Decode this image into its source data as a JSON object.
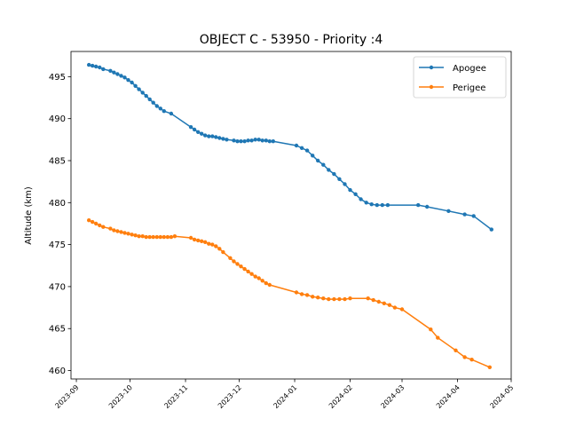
{
  "chart_data": {
    "type": "line",
    "title": "OBJECT C - 53950 - Priority :4",
    "xlabel": "",
    "ylabel": "Altitude (km)",
    "x_range": [
      "2023-08-29",
      "2024-05-01"
    ],
    "ylim": [
      459,
      498
    ],
    "x_ticks": [
      "2023-09",
      "2023-10",
      "2023-11",
      "2023-12",
      "2024-01",
      "2024-02",
      "2024-03",
      "2024-04",
      "2024-05"
    ],
    "y_ticks": [
      460,
      465,
      470,
      475,
      480,
      485,
      490,
      495
    ],
    "grid": false,
    "legend_position": "top-right",
    "series": [
      {
        "name": "Apogee",
        "color": "#1f77b4",
        "points": [
          [
            "2023-09-08",
            496.4
          ],
          [
            "2023-09-10",
            496.3
          ],
          [
            "2023-09-12",
            496.2
          ],
          [
            "2023-09-14",
            496.1
          ],
          [
            "2023-09-16",
            495.9
          ],
          [
            "2023-09-20",
            495.7
          ],
          [
            "2023-09-22",
            495.5
          ],
          [
            "2023-09-24",
            495.3
          ],
          [
            "2023-09-26",
            495.1
          ],
          [
            "2023-09-28",
            494.9
          ],
          [
            "2023-09-30",
            494.6
          ],
          [
            "2023-10-02",
            494.3
          ],
          [
            "2023-10-04",
            493.9
          ],
          [
            "2023-10-06",
            493.5
          ],
          [
            "2023-10-08",
            493.1
          ],
          [
            "2023-10-10",
            492.7
          ],
          [
            "2023-10-12",
            492.3
          ],
          [
            "2023-10-14",
            491.9
          ],
          [
            "2023-10-16",
            491.5
          ],
          [
            "2023-10-18",
            491.2
          ],
          [
            "2023-10-20",
            490.9
          ],
          [
            "2023-10-24",
            490.6
          ],
          [
            "2023-11-04",
            489.0
          ],
          [
            "2023-11-06",
            488.7
          ],
          [
            "2023-11-08",
            488.4
          ],
          [
            "2023-11-10",
            488.2
          ],
          [
            "2023-11-12",
            488.0
          ],
          [
            "2023-11-14",
            487.9
          ],
          [
            "2023-11-16",
            487.9
          ],
          [
            "2023-11-18",
            487.8
          ],
          [
            "2023-11-20",
            487.7
          ],
          [
            "2023-11-22",
            487.6
          ],
          [
            "2023-11-24",
            487.5
          ],
          [
            "2023-11-28",
            487.4
          ],
          [
            "2023-11-30",
            487.3
          ],
          [
            "2023-12-02",
            487.3
          ],
          [
            "2023-12-04",
            487.3
          ],
          [
            "2023-12-06",
            487.4
          ],
          [
            "2023-12-08",
            487.4
          ],
          [
            "2023-12-10",
            487.5
          ],
          [
            "2023-12-12",
            487.5
          ],
          [
            "2023-12-14",
            487.4
          ],
          [
            "2023-12-16",
            487.4
          ],
          [
            "2023-12-18",
            487.3
          ],
          [
            "2023-12-20",
            487.3
          ],
          [
            "2024-01-02",
            486.8
          ],
          [
            "2024-01-05",
            486.5
          ],
          [
            "2024-01-08",
            486.2
          ],
          [
            "2024-01-11",
            485.6
          ],
          [
            "2024-01-14",
            485.0
          ],
          [
            "2024-01-17",
            484.5
          ],
          [
            "2024-01-20",
            483.9
          ],
          [
            "2024-01-23",
            483.4
          ],
          [
            "2024-01-26",
            482.8
          ],
          [
            "2024-01-29",
            482.2
          ],
          [
            "2024-02-01",
            481.5
          ],
          [
            "2024-02-04",
            481.0
          ],
          [
            "2024-02-07",
            480.4
          ],
          [
            "2024-02-10",
            480.0
          ],
          [
            "2024-02-13",
            479.8
          ],
          [
            "2024-02-16",
            479.7
          ],
          [
            "2024-02-19",
            479.7
          ],
          [
            "2024-02-22",
            479.7
          ],
          [
            "2024-03-10",
            479.7
          ],
          [
            "2024-03-15",
            479.5
          ],
          [
            "2024-03-27",
            479.0
          ],
          [
            "2024-04-05",
            478.6
          ],
          [
            "2024-04-10",
            478.4
          ],
          [
            "2024-04-20",
            476.8
          ]
        ]
      },
      {
        "name": "Perigee",
        "color": "#ff7f0e",
        "points": [
          [
            "2023-09-08",
            477.9
          ],
          [
            "2023-09-10",
            477.7
          ],
          [
            "2023-09-12",
            477.5
          ],
          [
            "2023-09-14",
            477.3
          ],
          [
            "2023-09-16",
            477.1
          ],
          [
            "2023-09-20",
            476.9
          ],
          [
            "2023-09-22",
            476.7
          ],
          [
            "2023-09-24",
            476.6
          ],
          [
            "2023-09-26",
            476.5
          ],
          [
            "2023-09-28",
            476.4
          ],
          [
            "2023-09-30",
            476.3
          ],
          [
            "2023-10-02",
            476.2
          ],
          [
            "2023-10-04",
            476.1
          ],
          [
            "2023-10-06",
            476.0
          ],
          [
            "2023-10-08",
            476.0
          ],
          [
            "2023-10-10",
            475.9
          ],
          [
            "2023-10-12",
            475.9
          ],
          [
            "2023-10-14",
            475.9
          ],
          [
            "2023-10-16",
            475.9
          ],
          [
            "2023-10-18",
            475.9
          ],
          [
            "2023-10-20",
            475.9
          ],
          [
            "2023-10-22",
            475.9
          ],
          [
            "2023-10-24",
            475.9
          ],
          [
            "2023-10-26",
            476.0
          ],
          [
            "2023-11-04",
            475.8
          ],
          [
            "2023-11-06",
            475.6
          ],
          [
            "2023-11-08",
            475.5
          ],
          [
            "2023-11-10",
            475.4
          ],
          [
            "2023-11-12",
            475.3
          ],
          [
            "2023-11-14",
            475.1
          ],
          [
            "2023-11-16",
            475.0
          ],
          [
            "2023-11-18",
            474.8
          ],
          [
            "2023-11-20",
            474.5
          ],
          [
            "2023-11-22",
            474.1
          ],
          [
            "2023-11-26",
            473.4
          ],
          [
            "2023-11-28",
            473.0
          ],
          [
            "2023-11-30",
            472.7
          ],
          [
            "2023-12-02",
            472.4
          ],
          [
            "2023-12-04",
            472.1
          ],
          [
            "2023-12-06",
            471.8
          ],
          [
            "2023-12-08",
            471.5
          ],
          [
            "2023-12-10",
            471.2
          ],
          [
            "2023-12-12",
            471.0
          ],
          [
            "2023-12-14",
            470.7
          ],
          [
            "2023-12-16",
            470.4
          ],
          [
            "2023-12-18",
            470.2
          ],
          [
            "2024-01-02",
            469.3
          ],
          [
            "2024-01-05",
            469.1
          ],
          [
            "2024-01-08",
            469.0
          ],
          [
            "2024-01-11",
            468.8
          ],
          [
            "2024-01-14",
            468.7
          ],
          [
            "2024-01-17",
            468.6
          ],
          [
            "2024-01-20",
            468.5
          ],
          [
            "2024-01-23",
            468.5
          ],
          [
            "2024-01-26",
            468.5
          ],
          [
            "2024-01-29",
            468.5
          ],
          [
            "2024-02-01",
            468.6
          ],
          [
            "2024-02-11",
            468.6
          ],
          [
            "2024-02-14",
            468.4
          ],
          [
            "2024-02-17",
            468.2
          ],
          [
            "2024-02-20",
            468.0
          ],
          [
            "2024-02-23",
            467.8
          ],
          [
            "2024-02-26",
            467.5
          ],
          [
            "2024-03-01",
            467.3
          ],
          [
            "2024-03-17",
            464.9
          ],
          [
            "2024-03-21",
            463.9
          ],
          [
            "2024-03-31",
            462.4
          ],
          [
            "2024-04-05",
            461.6
          ],
          [
            "2024-04-09",
            461.3
          ],
          [
            "2024-04-19",
            460.4
          ]
        ]
      }
    ]
  }
}
